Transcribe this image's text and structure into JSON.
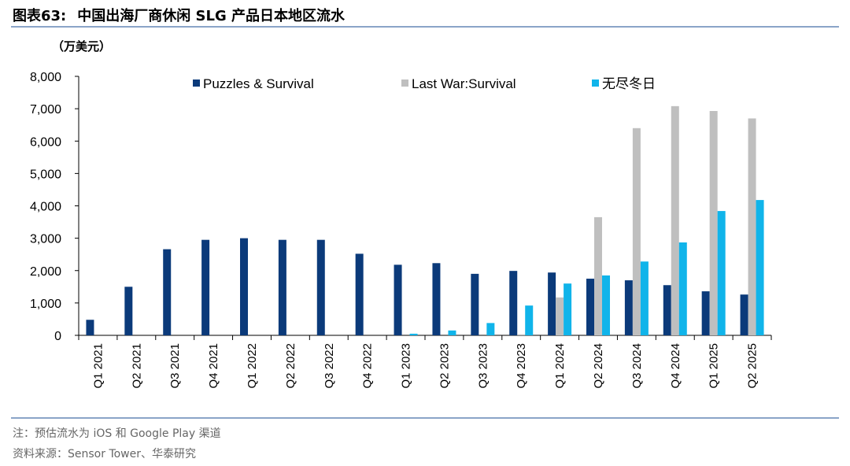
{
  "header": {
    "figure_num": "图表63:",
    "title": "中国出海厂商休闲 SLG 产品日本地区流水"
  },
  "footer": {
    "note": "注：预估流水为 iOS 和 Google Play 渠道",
    "source": "资料来源：Sensor Tower、华泰研究"
  },
  "chart_data": {
    "type": "bar",
    "title": "中国出海厂商休闲 SLG 产品日本地区流水",
    "ylabel": "（万美元）",
    "xlabel": "",
    "ylim": [
      0,
      8000
    ],
    "yticks": [
      0,
      1000,
      2000,
      3000,
      4000,
      5000,
      6000,
      7000,
      8000
    ],
    "ytick_labels": [
      "0",
      "1,000",
      "2,000",
      "3,000",
      "4,000",
      "5,000",
      "6,000",
      "7,000",
      "8,000"
    ],
    "grid": false,
    "legend_position": "top",
    "categories": [
      "Q1 2021",
      "Q2 2021",
      "Q3 2021",
      "Q4 2021",
      "Q1 2022",
      "Q2 2022",
      "Q3 2022",
      "Q4 2022",
      "Q1 2023",
      "Q2 2023",
      "Q3 2023",
      "Q4 2023",
      "Q1 2024",
      "Q2 2024",
      "Q3 2024",
      "Q4 2024",
      "Q1 2025",
      "Q2 2025"
    ],
    "series": [
      {
        "name": "Puzzles & Survival",
        "color": "#0b3a7a",
        "values": [
          480,
          1500,
          2660,
          2950,
          3000,
          2950,
          2950,
          2520,
          2180,
          2230,
          1900,
          1990,
          1940,
          1750,
          1700,
          1550,
          1360,
          1260
        ]
      },
      {
        "name": "Last War:Survival",
        "color": "#bfbfbf",
        "values": [
          0,
          0,
          0,
          0,
          0,
          0,
          0,
          0,
          0,
          0,
          0,
          30,
          1170,
          3650,
          6400,
          7080,
          6930,
          6700
        ]
      },
      {
        "name": "无尽冬日",
        "color": "#10b4ea",
        "values": [
          0,
          0,
          0,
          0,
          0,
          0,
          0,
          0,
          50,
          150,
          380,
          920,
          1600,
          1850,
          2280,
          2870,
          3840,
          4180
        ]
      }
    ]
  }
}
